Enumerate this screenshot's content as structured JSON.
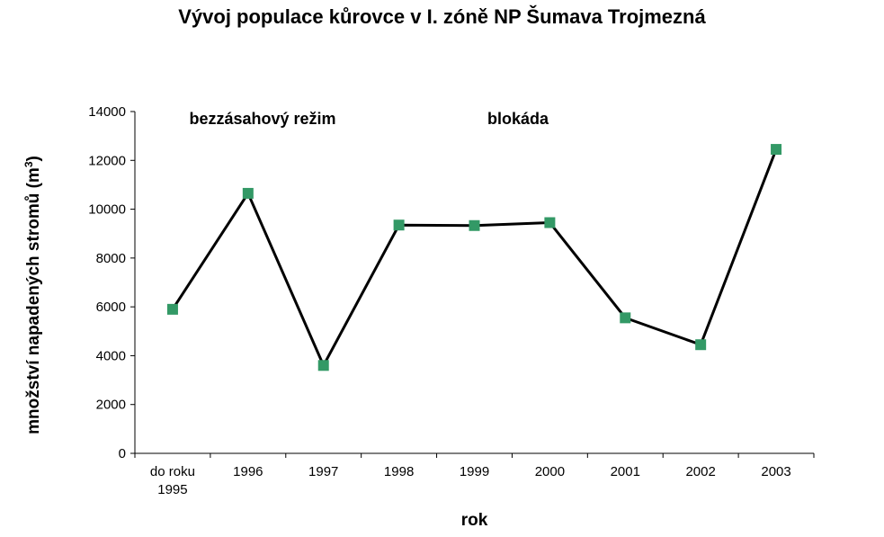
{
  "chart_data": {
    "type": "line",
    "title": "Vývoj populace kůrovce v I. zóně NP Šumava Trojmezná",
    "xlabel": "rok",
    "ylabel": "množství napadených stromů (m³)",
    "ylabel_main": "množství napadených stromů (m",
    "ylabel_sup": "3",
    "ylabel_close": ")",
    "categories": [
      [
        "do roku",
        "1995"
      ],
      [
        "1996"
      ],
      [
        "1997"
      ],
      [
        "1998"
      ],
      [
        "1999"
      ],
      [
        "2000"
      ],
      [
        "2001"
      ],
      [
        "2002"
      ],
      [
        "2003"
      ]
    ],
    "series": [
      {
        "values": [
          5900,
          10650,
          3600,
          9350,
          9330,
          9450,
          5550,
          4450,
          12450
        ],
        "color": "#339966",
        "line_color": "#000000"
      }
    ],
    "ylim": [
      0,
      14000
    ],
    "yticks": [
      "0",
      "2000",
      "4000",
      "6000",
      "8000",
      "10000",
      "12000",
      "14000"
    ],
    "grid": false,
    "annotations": [
      {
        "text": "bezzásahový režim",
        "position": "top-left"
      },
      {
        "text": "blokáda",
        "position": "top-center"
      }
    ]
  }
}
